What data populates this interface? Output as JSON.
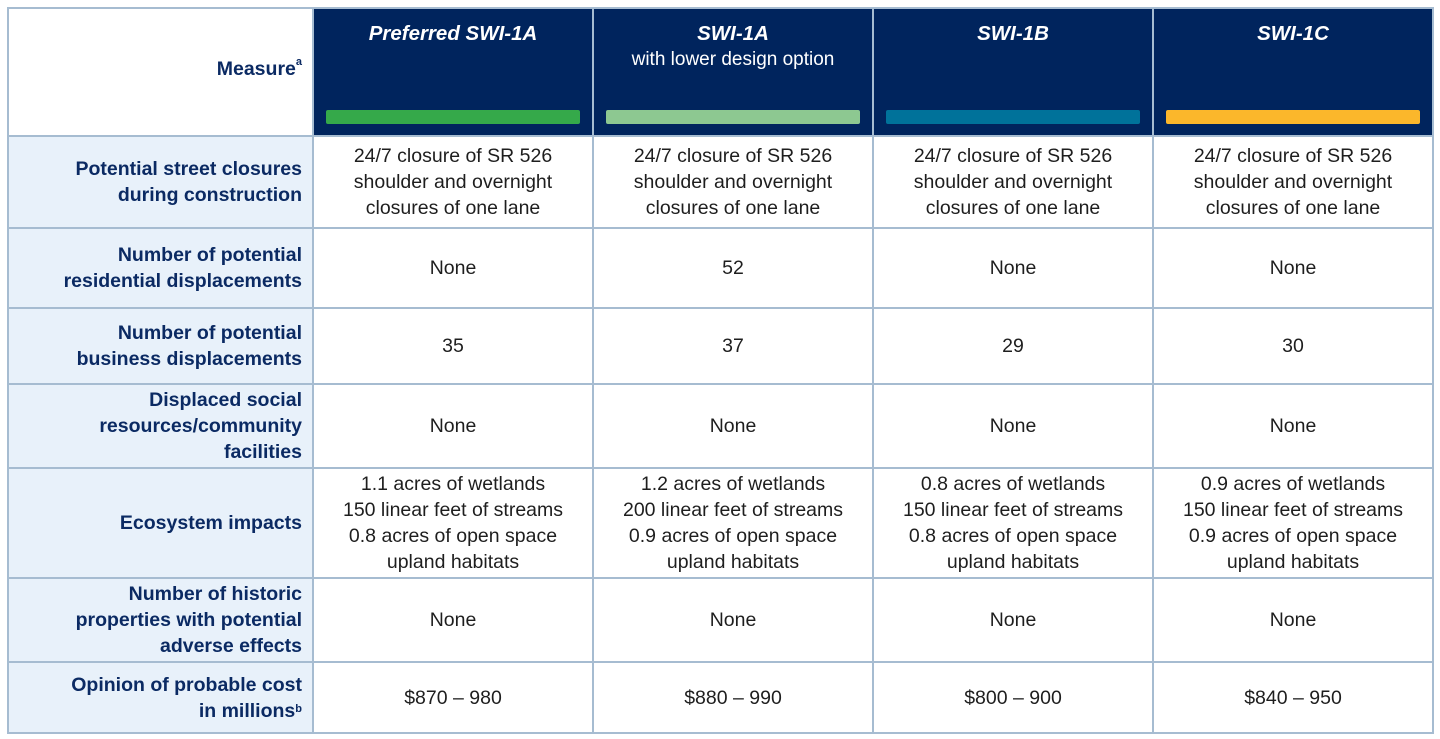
{
  "header": {
    "measure_label": "Measure",
    "measure_note": "a",
    "options": [
      {
        "title": "Preferred SWI-1A",
        "subtitle": "",
        "color": "#35a94a"
      },
      {
        "title": "SWI-1A",
        "subtitle": "with lower design option",
        "color": "#8dc891"
      },
      {
        "title": "SWI-1B",
        "subtitle": "",
        "color": "#00729a"
      },
      {
        "title": "SWI-1C",
        "subtitle": "",
        "color": "#fbb72b"
      }
    ]
  },
  "rows": [
    {
      "measure": [
        "Potential street closures",
        "during construction"
      ],
      "values": [
        [
          "24/7 closure of SR 526",
          "shoulder and overnight",
          "closures of one lane"
        ],
        [
          "24/7 closure of SR 526",
          "shoulder and overnight",
          "closures of one lane"
        ],
        [
          "24/7 closure of SR 526",
          "shoulder and overnight",
          "closures of one lane"
        ],
        [
          "24/7 closure of SR 526",
          "shoulder and overnight",
          "closures of one lane"
        ]
      ]
    },
    {
      "measure": [
        "Number of potential",
        "residential displacements"
      ],
      "values": [
        [
          "None"
        ],
        [
          "52"
        ],
        [
          "None"
        ],
        [
          "None"
        ]
      ]
    },
    {
      "measure": [
        "Number of potential",
        "business displacements"
      ],
      "values": [
        [
          "35"
        ],
        [
          "37"
        ],
        [
          "29"
        ],
        [
          "30"
        ]
      ]
    },
    {
      "measure": [
        "Displaced social",
        "resources/community",
        "facilities"
      ],
      "values": [
        [
          "None"
        ],
        [
          "None"
        ],
        [
          "None"
        ],
        [
          "None"
        ]
      ]
    },
    {
      "measure": [
        "Ecosystem impacts"
      ],
      "values": [
        [
          "1.1 acres of wetlands",
          "150 linear feet of streams",
          "0.8 acres of open space",
          "upland habitats"
        ],
        [
          "1.2 acres of wetlands",
          "200 linear feet of streams",
          "0.9 acres of open space",
          "upland habitats"
        ],
        [
          "0.8 acres of wetlands",
          "150 linear feet of streams",
          "0.8 acres of open space",
          "upland habitats"
        ],
        [
          "0.9 acres of wetlands",
          "150 linear feet of streams",
          "0.9 acres of open space",
          "upland habitats"
        ]
      ]
    },
    {
      "measure": [
        "Number of historic",
        "properties with potential",
        "adverse effects"
      ],
      "values": [
        [
          "None"
        ],
        [
          "None"
        ],
        [
          "None"
        ],
        [
          "None"
        ]
      ]
    },
    {
      "measure": [
        "Opinion of probable cost",
        "in millions"
      ],
      "measure_note": "b",
      "values": [
        [
          "$870 – 980"
        ],
        [
          "$880 – 990"
        ],
        [
          "$800 – 900"
        ],
        [
          "$840 – 950"
        ]
      ]
    }
  ]
}
